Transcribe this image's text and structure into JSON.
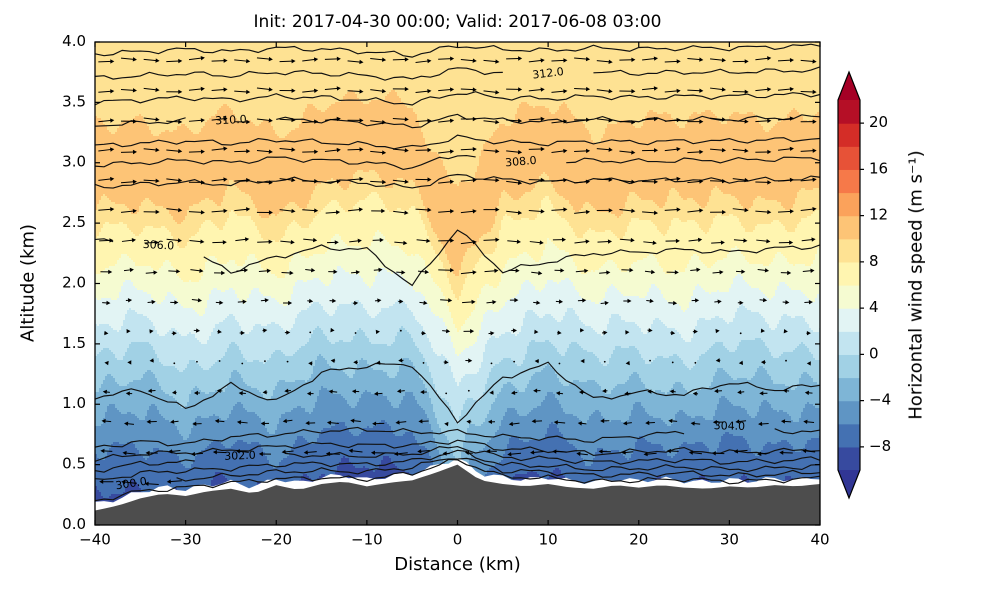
{
  "chart_data": {
    "type": "filled-contour+contour-lines+quiver",
    "title": "Init: 2017-04-30 00:00; Valid: 2017-06-08 03:00",
    "xlabel": "Distance (km)",
    "ylabel": "Altitude (km)",
    "xlim": [
      -40,
      40
    ],
    "ylim": [
      0,
      4
    ],
    "xtick_values": [
      -40,
      -30,
      -20,
      -10,
      0,
      10,
      20,
      30,
      40
    ],
    "xtick_labels": [
      "−40",
      "−30",
      "−20",
      "−10",
      "0",
      "10",
      "20",
      "30",
      "40"
    ],
    "ytick_values": [
      0,
      0.5,
      1,
      1.5,
      2,
      2.5,
      3,
      3.5,
      4
    ],
    "ytick_labels": [
      "0.0",
      "0.5",
      "1.0",
      "1.5",
      "2.0",
      "2.5",
      "3.0",
      "3.5",
      "4.0"
    ],
    "grid": false,
    "colorbar": {
      "label": "Horizontal wind speed (m s⁻¹)",
      "tick_values": [
        20,
        16,
        12,
        8,
        4,
        0,
        -4,
        -8
      ],
      "tick_labels": [
        "20",
        "16",
        "12",
        "8",
        "4",
        "0",
        "−4",
        "−8"
      ],
      "vmin": -10,
      "vmax": 22,
      "level_step": 2,
      "colormap": "RdYlBu_r",
      "colormap_anchors": [
        "#313695",
        "#4575b4",
        "#74add1",
        "#abd9e9",
        "#e0f3f8",
        "#ffffbf",
        "#fee090",
        "#fdae61",
        "#f46d43",
        "#d73027",
        "#a50026"
      ],
      "extend": "both"
    },
    "wind_speed_profile": {
      "z_km": [
        0,
        0.25,
        0.5,
        0.75,
        1,
        1.25,
        1.5,
        1.75,
        2,
        2.25,
        2.5,
        2.75,
        3,
        3.25,
        3.5,
        3.75,
        4
      ],
      "speed_ms": [
        -9.5,
        -8.5,
        -7,
        -5.5,
        -3.5,
        -1.5,
        0.5,
        2.5,
        4.5,
        6.5,
        8,
        10.5,
        12,
        10.5,
        9.5,
        9,
        8.5
      ]
    },
    "column_shift_km": {
      "x_km": [
        -40,
        -35,
        -30,
        -25,
        -20,
        -15,
        -10,
        -5,
        0,
        5,
        10,
        15,
        20,
        25,
        30,
        35,
        40
      ],
      "dz": [
        0.05,
        0,
        0.15,
        -0.05,
        0.12,
        -0.12,
        -0.15,
        -0.12,
        0.6,
        0.05,
        -0.12,
        0.1,
        0,
        0.05,
        -0.05,
        0.02,
        -0.03
      ]
    },
    "terrain_km": {
      "x_km": [
        -40,
        -37.5,
        -35,
        -32.5,
        -30,
        -27.5,
        -25,
        -22.5,
        -20,
        -17.5,
        -15,
        -12.5,
        -10,
        -7.5,
        -5,
        -2.5,
        0,
        2.5,
        5,
        7.5,
        10,
        12.5,
        15,
        17.5,
        20,
        22.5,
        25,
        27.5,
        30,
        32.5,
        35,
        37.5,
        40
      ],
      "z_km": [
        0.12,
        0.16,
        0.22,
        0.26,
        0.24,
        0.28,
        0.3,
        0.26,
        0.33,
        0.29,
        0.34,
        0.36,
        0.32,
        0.35,
        0.37,
        0.43,
        0.5,
        0.37,
        0.34,
        0.32,
        0.34,
        0.31,
        0.3,
        0.33,
        0.31,
        0.33,
        0.31,
        0.3,
        0.32,
        0.31,
        0.33,
        0.32,
        0.34
      ],
      "color": "#4d4d4d"
    },
    "theta_contours": {
      "units": "K",
      "interval_K": 1,
      "x_km": [
        -40,
        -35,
        -30,
        -25,
        -20,
        -15,
        -10,
        -5,
        0,
        5,
        10,
        15,
        20,
        25,
        30,
        35,
        40
      ],
      "lines": [
        {
          "theta": 299,
          "label": null,
          "label_x_km": null,
          "heights_km": [
            0.2,
            0.28,
            0.31,
            0.35,
            0.38,
            0.39,
            0.38,
            0.43,
            0.54,
            0.4,
            0.39,
            0.36,
            0.37,
            0.38,
            0.36,
            0.37,
            0.39
          ]
        },
        {
          "theta": 300,
          "label": "300.0",
          "label_x_km": -36,
          "heights_km": [
            0.28,
            0.36,
            0.38,
            0.41,
            0.44,
            0.45,
            0.44,
            0.48,
            0.57,
            0.45,
            0.44,
            0.41,
            0.42,
            0.43,
            0.41,
            0.42,
            0.44
          ]
        },
        {
          "theta": 301,
          "label": null,
          "label_x_km": null,
          "heights_km": [
            0.36,
            0.43,
            0.45,
            0.47,
            0.5,
            0.51,
            0.5,
            0.53,
            0.61,
            0.5,
            0.49,
            0.46,
            0.47,
            0.48,
            0.46,
            0.47,
            0.49
          ]
        },
        {
          "theta": 302,
          "label": "302.0",
          "label_x_km": -24,
          "heights_km": [
            0.45,
            0.51,
            0.52,
            0.54,
            0.57,
            0.58,
            0.57,
            0.59,
            0.65,
            0.56,
            0.55,
            0.52,
            0.53,
            0.54,
            0.52,
            0.53,
            0.55
          ]
        },
        {
          "theta": 303,
          "label": null,
          "label_x_km": null,
          "heights_km": [
            0.54,
            0.59,
            0.6,
            0.62,
            0.65,
            0.67,
            0.66,
            0.66,
            0.7,
            0.63,
            0.62,
            0.59,
            0.61,
            0.62,
            0.6,
            0.61,
            0.63
          ]
        },
        {
          "theta": 304,
          "label": "304.0",
          "label_x_km": 30,
          "heights_km": [
            0.64,
            0.69,
            0.67,
            0.73,
            0.75,
            0.78,
            0.79,
            0.77,
            0.77,
            0.73,
            0.72,
            0.7,
            0.74,
            0.77,
            0.81,
            0.78,
            0.77
          ]
        },
        {
          "theta": 305,
          "label": null,
          "label_x_km": null,
          "heights_km": [
            1.06,
            1.12,
            0.96,
            1.16,
            1.02,
            1.26,
            1.32,
            1.33,
            0.86,
            1.22,
            1.33,
            1.04,
            1.1,
            1.08,
            1.18,
            1.12,
            1.16
          ]
        },
        {
          "theta": 306,
          "label": "306.0",
          "label_x_km": -33,
          "heights_km": [
            2.36,
            2.32,
            2.28,
            2.1,
            2.22,
            2.3,
            2.28,
            1.98,
            2.45,
            2.1,
            2.18,
            2.25,
            2.26,
            2.28,
            2.26,
            2.29,
            2.31
          ]
        },
        {
          "theta": 307,
          "label": null,
          "label_x_km": null,
          "heights_km": [
            2.8,
            2.82,
            2.84,
            2.82,
            2.86,
            2.85,
            2.83,
            2.79,
            2.9,
            2.86,
            2.84,
            2.86,
            2.85,
            2.86,
            2.85,
            2.86,
            2.87
          ]
        },
        {
          "theta": 308,
          "label": "308.0",
          "label_x_km": 7,
          "heights_km": [
            2.98,
            3.0,
            3.02,
            3.0,
            3.04,
            3.02,
            3.0,
            2.96,
            3.07,
            3.02,
            3.0,
            3.02,
            3.01,
            3.02,
            3.02,
            3.03,
            3.04
          ]
        },
        {
          "theta": 309,
          "label": null,
          "label_x_km": null,
          "heights_km": [
            3.14,
            3.16,
            3.18,
            3.16,
            3.19,
            3.17,
            3.15,
            3.12,
            3.21,
            3.17,
            3.16,
            3.18,
            3.17,
            3.18,
            3.18,
            3.19,
            3.2
          ]
        },
        {
          "theta": 310,
          "label": "310.0",
          "label_x_km": -25,
          "heights_km": [
            3.31,
            3.33,
            3.35,
            3.33,
            3.36,
            3.35,
            3.33,
            3.3,
            3.39,
            3.35,
            3.34,
            3.36,
            3.35,
            3.36,
            3.36,
            3.37,
            3.38
          ]
        },
        {
          "theta": 311,
          "label": null,
          "label_x_km": null,
          "heights_km": [
            3.5,
            3.52,
            3.54,
            3.52,
            3.55,
            3.54,
            3.52,
            3.49,
            3.58,
            3.54,
            3.53,
            3.55,
            3.54,
            3.55,
            3.55,
            3.56,
            3.57
          ]
        },
        {
          "theta": 312,
          "label": "312.0",
          "label_x_km": 10,
          "heights_km": [
            3.7,
            3.72,
            3.74,
            3.72,
            3.75,
            3.74,
            3.72,
            3.69,
            3.78,
            3.74,
            3.73,
            3.75,
            3.74,
            3.75,
            3.75,
            3.76,
            3.77
          ]
        },
        {
          "theta": 313,
          "label": null,
          "label_x_km": null,
          "heights_km": [
            3.9,
            3.92,
            3.94,
            3.92,
            3.95,
            3.94,
            3.92,
            3.89,
            3.97,
            3.94,
            3.93,
            3.95,
            3.94,
            3.95,
            3.95,
            3.96,
            3.97
          ]
        }
      ]
    },
    "quiver": {
      "x_start_km": -38.75,
      "x_step_km": 2.5,
      "z_rows_km": [
        0.35,
        0.6,
        0.85,
        1.1,
        1.35,
        1.6,
        1.85,
        2.1,
        2.35,
        2.6,
        2.85,
        3.1,
        3.35,
        3.6,
        3.85
      ],
      "note": "u = horizontal wind speed field; arrows point right for positive, left for negative"
    }
  }
}
